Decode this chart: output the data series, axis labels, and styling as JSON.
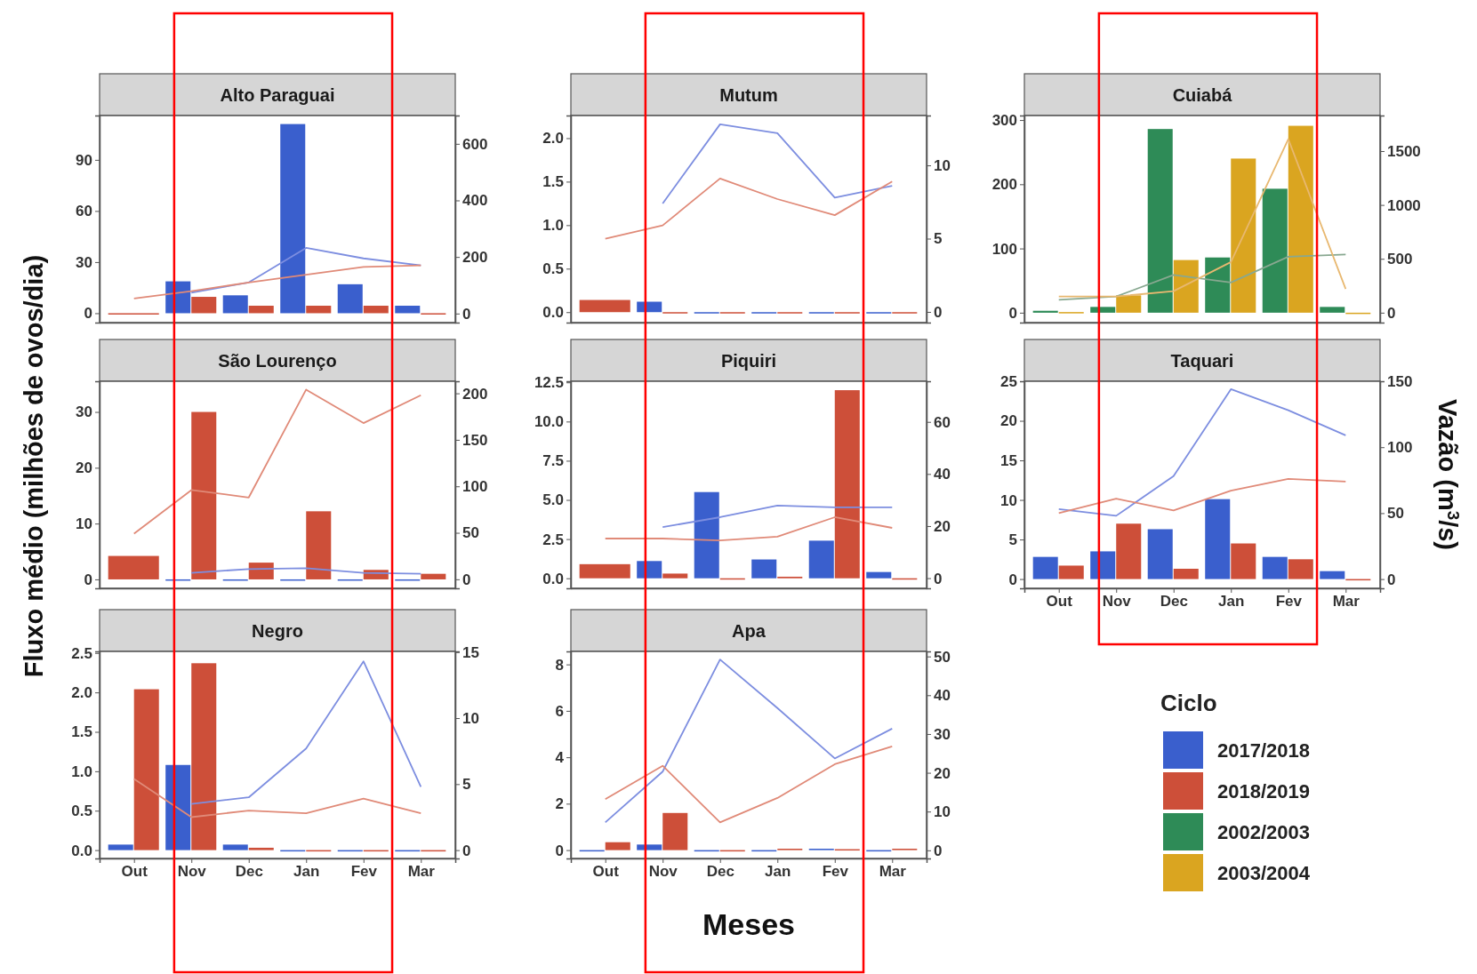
{
  "chart_data": [
    {
      "type": "bar",
      "title": "Alto Paraguai",
      "categories": [
        "Out",
        "Nov",
        "Dec",
        "Jan",
        "Fev",
        "Mar"
      ],
      "tick_labels": "y",
      "legend": "bottom",
      "series": [
        {
          "name": "2017/2018",
          "color": "#3a5fcd",
          "values": [
            null,
            18.7,
            10.5,
            111,
            17,
            4.4
          ]
        },
        {
          "name": "2018/2019",
          "color": "#cd4f39",
          "values": [
            0,
            9.6,
            4.4,
            4.4,
            4.4,
            0
          ]
        },
        {
          "type": "line",
          "axis": "y2",
          "color": "#7d8ee0",
          "values": [
            null,
            74,
            110,
            232,
            195,
            170
          ]
        },
        {
          "type": "line",
          "axis": "y2",
          "color": "#e08a78",
          "values": [
            53,
            79,
            110,
            137,
            165,
            170
          ]
        }
      ],
      "ylim": [
        -5.5,
        116
      ],
      "yticks": [
        0,
        30,
        60,
        90
      ],
      "y2lim": [
        -32,
        700
      ],
      "y2ticks": [
        0,
        200,
        400,
        600
      ]
    },
    {
      "type": "bar",
      "title": "Mutum",
      "categories": [
        "Out",
        "Nov",
        "Dec",
        "Jan",
        "Fev",
        "Mar"
      ],
      "tick_labels": "y",
      "legend": "bottom",
      "series": [
        {
          "name": "2017/2018",
          "color": "#3a5fcd",
          "values": [
            null,
            0.12,
            0,
            0,
            0,
            0
          ]
        },
        {
          "name": "2018/2019",
          "color": "#cd4f39",
          "values": [
            0.14,
            0,
            0,
            0,
            0,
            0
          ]
        },
        {
          "type": "line",
          "axis": "y2",
          "color": "#7d8ee0",
          "values": [
            null,
            7.4,
            12.8,
            12.2,
            7.8,
            8.6
          ]
        },
        {
          "type": "line",
          "axis": "y2",
          "color": "#e08a78",
          "values": [
            5,
            5.9,
            9.1,
            7.7,
            6.6,
            8.9
          ]
        }
      ],
      "ylim": [
        -0.12,
        2.26
      ],
      "yticks": [
        {
          "value": 0,
          "label": "0.0"
        },
        0.5,
        {
          "value": 1,
          "label": "1.0"
        },
        1.5,
        {
          "value": 2,
          "label": "2.0"
        }
      ],
      "y2lim": [
        -0.73,
        13.4
      ],
      "y2ticks": [
        0,
        5,
        10
      ]
    },
    {
      "type": "bar",
      "title": "Cuiabá",
      "categories": [
        "Out",
        "Nov",
        "Dec",
        "Jan",
        "Fev",
        "Mar"
      ],
      "tick_labels": "y",
      "legend": "bottom",
      "series": [
        {
          "name": "2002/2003",
          "color": "#2e8b57",
          "values": [
            3,
            9,
            286,
            86,
            193,
            9
          ]
        },
        {
          "name": "2003/2004",
          "color": "#daa520",
          "values": [
            1,
            27,
            82,
            240,
            291,
            0
          ]
        },
        {
          "type": "line",
          "axis": "y2",
          "color": "#88a890",
          "values": [
            120,
            150,
            350,
            280,
            520,
            540
          ]
        },
        {
          "type": "line",
          "axis": "y2",
          "color": "#e8b870",
          "values": [
            150,
            150,
            200,
            470,
            1610,
            220
          ]
        }
      ],
      "ylim": [
        -15.4,
        307
      ],
      "yticks": [
        0,
        100,
        200,
        300
      ],
      "y2lim": [
        -92,
        1830
      ],
      "y2ticks": [
        0,
        500,
        1000,
        1500
      ]
    },
    {
      "type": "bar",
      "title": "São Lourenço",
      "ylabel": "Fluxo médio (milhões de ovos/dia)",
      "categories": [
        "Out",
        "Nov",
        "Dec",
        "Jan",
        "Fev",
        "Mar"
      ],
      "tick_labels": "y",
      "legend": "bottom",
      "series": [
        {
          "name": "2017/2018",
          "color": "#3a5fcd",
          "values": [
            null,
            0,
            0,
            0,
            0,
            0
          ]
        },
        {
          "name": "2018/2019",
          "color": "#cd4f39",
          "values": [
            4.2,
            30,
            3,
            12.2,
            1.7,
            1
          ]
        },
        {
          "type": "line",
          "axis": "y2",
          "color": "#7d8ee0",
          "values": [
            null,
            7,
            11,
            12,
            7,
            6
          ]
        },
        {
          "type": "line",
          "axis": "y2",
          "color": "#e08a78",
          "values": [
            49,
            96,
            88,
            204,
            168,
            198
          ]
        }
      ],
      "ylim": [
        -1.6,
        35.5
      ],
      "yticks": [
        0,
        10,
        20,
        30
      ],
      "y2lim": [
        -9.7,
        213
      ],
      "y2ticks": [
        0,
        50,
        100,
        150,
        200
      ]
    },
    {
      "type": "bar",
      "title": "Piquiri",
      "categories": [
        "Out",
        "Nov",
        "Dec",
        "Jan",
        "Fev",
        "Mar"
      ],
      "tick_labels": "y",
      "legend": "bottom",
      "series": [
        {
          "name": "2017/2018",
          "color": "#3a5fcd",
          "values": [
            null,
            1.1,
            5.5,
            1.2,
            2.4,
            0.4
          ]
        },
        {
          "name": "2018/2019",
          "color": "#cd4f39",
          "values": [
            0.9,
            0.3,
            0,
            0.1,
            12,
            0
          ]
        },
        {
          "type": "line",
          "axis": "y2",
          "color": "#7d8ee0",
          "values": [
            null,
            19.6,
            23.4,
            27.9,
            27.2,
            27.2
          ]
        },
        {
          "type": "line",
          "axis": "y2",
          "color": "#e08a78",
          "values": [
            15.2,
            15.2,
            14.5,
            15.9,
            23.4,
            19.3
          ]
        }
      ],
      "ylim": [
        -0.64,
        12.57
      ],
      "yticks": [
        {
          "value": 0,
          "label": "0.0"
        },
        2.5,
        {
          "value": 5,
          "label": "5.0"
        },
        7.5,
        {
          "value": 10,
          "label": "10.0"
        },
        12.5
      ],
      "y2lim": [
        -3.9,
        75.6
      ],
      "y2ticks": [
        0,
        20,
        40,
        60
      ]
    },
    {
      "type": "bar",
      "title": "Taquari",
      "y2label": "Vazão (m$^{3}$/s)",
      "legend_title": "Ciclo",
      "categories": [
        "Out",
        "Nov",
        "Dec",
        "Jan",
        "Fev",
        "Mar"
      ],
      "legend": "bottom",
      "series": [
        {
          "name": "2017/2018",
          "color": "#3a5fcd",
          "values": [
            2.8,
            3.5,
            6.3,
            10.1,
            2.8,
            1
          ]
        },
        {
          "name": "2018/2019",
          "color": "#cd4f39",
          "values": [
            1.7,
            7,
            1.3,
            4.5,
            2.5,
            0
          ]
        },
        {
          "type": "line",
          "axis": "y2",
          "color": "#7d8ee0",
          "values": [
            53,
            48,
            78,
            144,
            128,
            109
          ]
        },
        {
          "type": "line",
          "axis": "y2",
          "color": "#e08a78",
          "values": [
            50,
            61,
            52,
            67,
            76,
            74
          ]
        }
      ],
      "ylim": [
        -1.17,
        25
      ],
      "yticks": [
        0,
        5,
        10,
        15,
        20,
        25
      ],
      "y2lim": [
        -7,
        150
      ],
      "y2ticks": [
        0,
        50,
        100,
        150
      ]
    },
    {
      "type": "bar",
      "title": "Negro",
      "categories": [
        "Out",
        "Nov",
        "Dec",
        "Jan",
        "Fev",
        "Mar"
      ],
      "legend": "bottom",
      "series": [
        {
          "name": "2017/2018",
          "color": "#3a5fcd",
          "values": [
            0.07,
            1.08,
            0.07,
            0,
            0,
            0
          ]
        },
        {
          "name": "2018/2019",
          "color": "#cd4f39",
          "values": [
            2.04,
            2.37,
            0.03,
            0,
            0,
            0
          ]
        },
        {
          "type": "line",
          "axis": "y2",
          "color": "#7d8ee0",
          "values": [
            null,
            3.5,
            4,
            7.7,
            14.3,
            4.8
          ]
        },
        {
          "type": "line",
          "axis": "y2",
          "color": "#e08a78",
          "values": [
            5.4,
            2.5,
            3,
            2.8,
            3.9,
            2.8
          ]
        }
      ],
      "ylim": [
        -0.106,
        2.52
      ],
      "yticks": [
        {
          "value": 0,
          "label": "0.0"
        },
        0.5,
        {
          "value": 1,
          "label": "1.0"
        },
        1.5,
        {
          "value": 2,
          "label": "2.0"
        },
        2.5
      ],
      "y2lim": [
        -0.63,
        15.05
      ],
      "y2ticks": [
        0,
        5,
        10,
        15
      ]
    },
    {
      "type": "bar",
      "title": "Apa",
      "xlabel": "Meses",
      "categories": [
        "Out",
        "Nov",
        "Dec",
        "Jan",
        "Fev",
        "Mar"
      ],
      "legend": "bottom",
      "series": [
        {
          "name": "2017/2018",
          "color": "#3a5fcd",
          "values": [
            0,
            0.24,
            0,
            0,
            0.06,
            0
          ]
        },
        {
          "name": "2018/2019",
          "color": "#cd4f39",
          "values": [
            0.34,
            1.6,
            0,
            0.06,
            0.04,
            0.06
          ]
        },
        {
          "type": "line",
          "axis": "y2",
          "color": "#7d8ee0",
          "values": [
            7.2,
            20.3,
            49.2,
            36.7,
            23.7,
            31.4
          ]
        },
        {
          "type": "line",
          "axis": "y2",
          "color": "#e08a78",
          "values": [
            13.2,
            21.8,
            7.2,
            13.5,
            22.2,
            26.8
          ]
        }
      ],
      "ylim": [
        -0.36,
        8.56
      ],
      "yticks": [
        0,
        2,
        4,
        6,
        8
      ],
      "y2lim": [
        -2.1,
        51.3
      ],
      "y2ticks": [
        0,
        10,
        20,
        30,
        40,
        50
      ]
    }
  ]
}
